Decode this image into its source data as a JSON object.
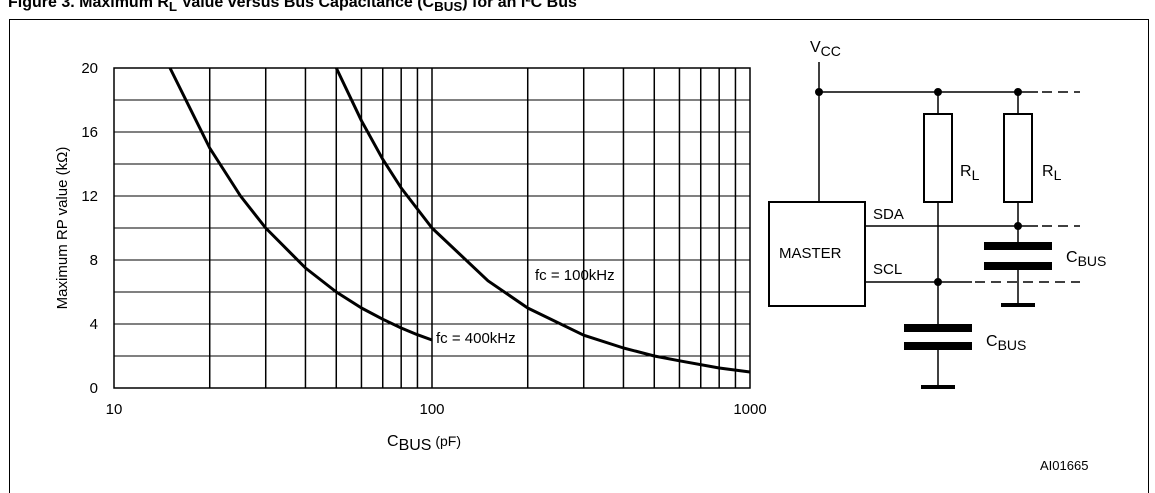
{
  "figure_title": {
    "prefix": "Figure 3. Maximum R",
    "prefix_sub": "L",
    "mid": " Value versus Bus Capacitance (C",
    "mid_sub": "BUS",
    "suffix": ") for an I²C Bus"
  },
  "colors": {
    "line": "#000000",
    "background": "#ffffff"
  },
  "chart_data": {
    "type": "line",
    "title": "",
    "xlabel": {
      "main": "C",
      "sub": "BUS",
      "unit": " (pF)"
    },
    "ylabel": "Maximum RP value (kΩ)",
    "x_scale": "log",
    "xlim": [
      10,
      1000
    ],
    "ylim": [
      0,
      20
    ],
    "grid": true,
    "x_tick_labels": [
      "10",
      "100",
      "1000"
    ],
    "y_tick_labels": [
      "0",
      "4",
      "8",
      "12",
      "16",
      "20"
    ],
    "series": [
      {
        "name": "fc = 400kHz",
        "x": [
          15,
          20,
          25,
          30,
          40,
          50,
          60,
          70,
          80,
          90,
          100
        ],
        "y": [
          20,
          15,
          12,
          10,
          7.5,
          6,
          5,
          4.3,
          3.75,
          3.33,
          3
        ]
      },
      {
        "name": "fc = 100kHz",
        "x": [
          50,
          60,
          70,
          80,
          100,
          150,
          200,
          300,
          400,
          500,
          600,
          800,
          1000
        ],
        "y": [
          20,
          16.7,
          14.3,
          12.5,
          10,
          6.7,
          5,
          3.3,
          2.5,
          2,
          1.7,
          1.25,
          1
        ]
      }
    ]
  },
  "schematic": {
    "vcc": {
      "main": "V",
      "sub": "CC"
    },
    "master_label": "MASTER",
    "sda_label": "SDA",
    "scl_label": "SCL",
    "resistor_label": {
      "main": "R",
      "sub": "L"
    },
    "capacitor_label": {
      "main": "C",
      "sub": "BUS"
    }
  },
  "figure_id": "AI01665"
}
